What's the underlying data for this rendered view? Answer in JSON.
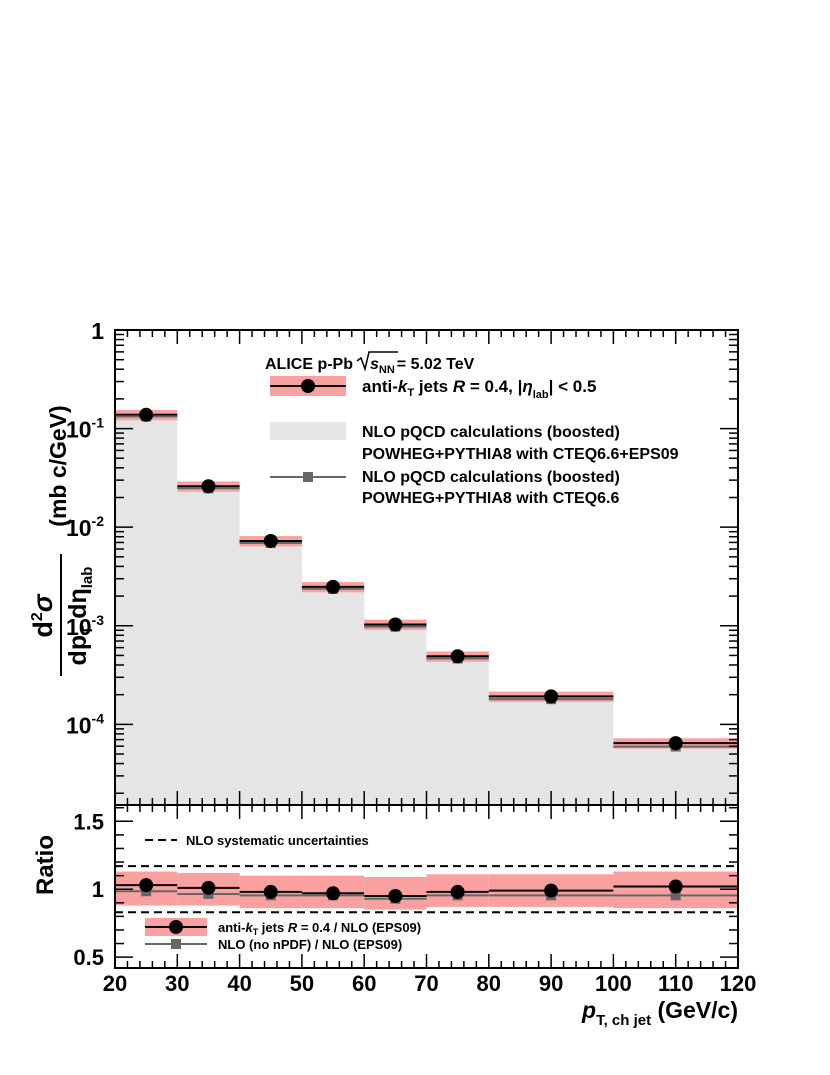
{
  "chart_data": [
    {
      "type": "bar",
      "panel": "main",
      "yscale": "log",
      "xlim": [
        20,
        120
      ],
      "ylim": [
        1.52e-05,
        1
      ],
      "y_ticks": [
        {
          "value": 1,
          "label": "1",
          "exp": ""
        },
        {
          "value": 0.1,
          "label": "10",
          "exp": "-1"
        },
        {
          "value": 0.01,
          "label": "10",
          "exp": "-2"
        },
        {
          "value": 0.001,
          "label": "10",
          "exp": "-3"
        },
        {
          "value": 0.0001,
          "label": "10",
          "exp": "-4"
        }
      ],
      "ylabel": {
        "num_d": "d",
        "num_sup": "2",
        "num_sigma": "σ",
        "den_d": "dp",
        "den_sub": "T",
        "den_deta": " dη",
        "den_sub2": "lab",
        "units": "(mb  c/GeV)"
      },
      "bins": [
        [
          20,
          30
        ],
        [
          30,
          40
        ],
        [
          40,
          50
        ],
        [
          50,
          60
        ],
        [
          60,
          70
        ],
        [
          70,
          80
        ],
        [
          80,
          100
        ],
        [
          100,
          120
        ]
      ],
      "x": [
        25,
        35,
        45,
        55,
        65,
        75,
        90,
        110
      ],
      "series": [
        {
          "name": "anti-kT jets R = 0.4, |ηlab| < 0.5",
          "kind": "data-points",
          "color": "#000000",
          "sys_color": "#f9a0a0",
          "values": [
            0.138,
            0.026,
            0.00725,
            0.00248,
            0.00103,
            0.00049,
            0.000192,
            6.45e-05
          ],
          "sys_rel": 0.12
        },
        {
          "name": "NLO pQCD calculations (boosted) POWHEG+PYTHIA8 with CTEQ6.6+EPS09",
          "kind": "histogram-fill",
          "color": "#e5e5e5",
          "values": [
            0.132,
            0.0253,
            0.0071,
            0.00245,
            0.00106,
            0.00049,
            0.00019,
            6.3e-05
          ]
        },
        {
          "name": "NLO pQCD calculations (boosted) POWHEG+PYTHIA8 with CTEQ6.6",
          "kind": "square-line",
          "color": "#666666",
          "values": [
            0.133,
            0.0248,
            0.0069,
            0.00237,
            0.00098,
            0.000465,
            0.00018,
            5.95e-05
          ]
        }
      ],
      "legend": {
        "header": {
          "experiment": "ALICE p-Pb",
          "energy": "= 5.02 TeV",
          "sqrt_s": "s",
          "sqrt_sub": "NN"
        },
        "entry1": {
          "a": "anti-",
          "k": "k",
          "ksub": "T",
          "b": " jets  ",
          "R": "R",
          "c": " = 0.4, |",
          "eta": "η",
          "etasub": "lab",
          "d": "| < 0.5"
        },
        "entry2_line1": "NLO pQCD calculations (boosted)",
        "entry2_line2": "POWHEG+PYTHIA8 with CTEQ6.6+EPS09",
        "entry3_line1": "NLO pQCD calculations (boosted)",
        "entry3_line2": "POWHEG+PYTHIA8 with CTEQ6.6"
      }
    },
    {
      "type": "bar",
      "panel": "ratio",
      "xlim": [
        20,
        120
      ],
      "ylim": [
        0.42,
        1.62
      ],
      "ylabel": "Ratio",
      "y_ticks": [
        "0.5",
        "1",
        "1.5"
      ],
      "x_ticks": [
        "20",
        "30",
        "40",
        "50",
        "60",
        "70",
        "80",
        "90",
        "100",
        "110",
        "120"
      ],
      "xlabel": {
        "p": "p",
        "sub": "T, ch jet",
        "units": " (GeV/c)"
      },
      "nlo_sys_band": [
        0.83,
        1.17
      ],
      "bins": [
        [
          20,
          30
        ],
        [
          30,
          40
        ],
        [
          40,
          50
        ],
        [
          50,
          60
        ],
        [
          60,
          70
        ],
        [
          70,
          80
        ],
        [
          80,
          100
        ],
        [
          100,
          120
        ]
      ],
      "x": [
        25,
        35,
        45,
        55,
        65,
        75,
        90,
        110
      ],
      "series": [
        {
          "name": "anti-kT jets R = 0.4 / NLO (EPS09)",
          "kind": "data-points",
          "color": "#000000",
          "sys_color": "#f9a0a0",
          "values": [
            1.03,
            1.01,
            0.98,
            0.97,
            0.95,
            0.98,
            0.99,
            1.02
          ],
          "sys_lo": [
            0.88,
            0.88,
            0.86,
            0.86,
            0.85,
            0.87,
            0.87,
            0.86
          ],
          "sys_hi": [
            1.13,
            1.12,
            1.1,
            1.1,
            1.09,
            1.11,
            1.11,
            1.13
          ],
          "stat_err": [
            0.005,
            0.005,
            0.006,
            0.006,
            0.007,
            0.008,
            0.01,
            0.03
          ]
        },
        {
          "name": "NLO (no nPDF) / NLO (EPS09)",
          "kind": "square-line",
          "color": "#666666",
          "values": [
            0.985,
            0.965,
            0.955,
            0.955,
            0.93,
            0.955,
            0.955,
            0.955
          ]
        }
      ],
      "annotation": "NLO systematic uncertainties",
      "legend": {
        "entry1": {
          "a": "anti-",
          "k": "k",
          "ksub": "T",
          "b": " jets  ",
          "R": "R",
          "c": " = 0.4 / NLO (EPS09)"
        },
        "entry2": "NLO (no nPDF) / NLO (EPS09)"
      }
    }
  ]
}
